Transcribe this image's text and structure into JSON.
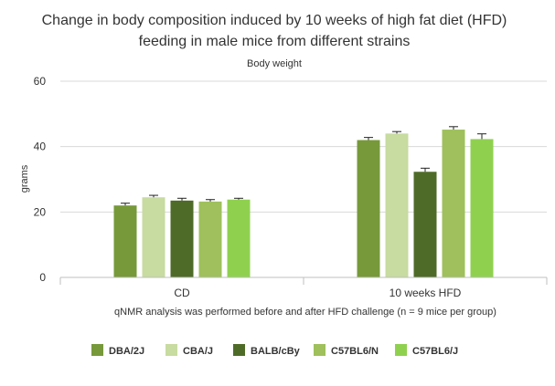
{
  "chart_data": {
    "type": "bar",
    "title_lines": [
      "Change in body composition induced by 10 weeks of high fat diet (HFD)",
      "feeding in male mice from different strains"
    ],
    "subtitle": "Body weight",
    "xlabel": "qNMR analysis was performed before and after HFD challenge (n = 9 mice per group)",
    "ylabel": "grams",
    "ylim": [
      0,
      60
    ],
    "yticks": [
      0,
      20,
      40,
      60
    ],
    "grid": true,
    "legend_position": "bottom",
    "categories": [
      "CD",
      "10 weeks HFD"
    ],
    "series": [
      {
        "name": "DBA/2J",
        "color": "#77993a",
        "values": [
          22.0,
          42.0
        ],
        "errors": [
          0.7,
          0.8
        ]
      },
      {
        "name": "CBA/J",
        "color": "#c8dba0",
        "values": [
          24.5,
          44.0
        ],
        "errors": [
          0.6,
          0.6
        ]
      },
      {
        "name": "BALB/cBy",
        "color": "#4f6b28",
        "values": [
          23.5,
          32.3
        ],
        "errors": [
          0.7,
          1.1
        ]
      },
      {
        "name": "C57BL6/N",
        "color": "#9fc05c",
        "values": [
          23.2,
          45.2
        ],
        "errors": [
          0.6,
          0.9
        ]
      },
      {
        "name": "C57BL6/J",
        "color": "#8fd14f",
        "values": [
          23.8,
          42.3
        ],
        "errors": [
          0.4,
          1.6
        ]
      }
    ]
  }
}
